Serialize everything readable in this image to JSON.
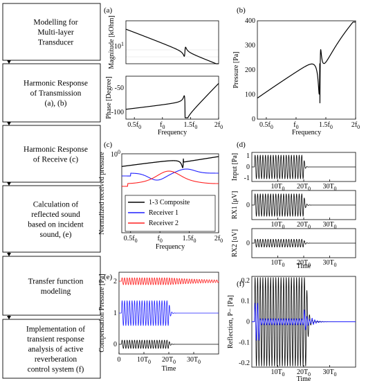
{
  "flowchart": {
    "steps": [
      {
        "lines": [
          "Modelling for",
          "Multi-layer",
          "Transducer"
        ]
      },
      {
        "lines": [
          "Harmonic Response",
          "of Transmission",
          "(a), (b)"
        ]
      },
      {
        "lines": [
          "Harmonic Response",
          "of Receive (c)"
        ]
      },
      {
        "lines": [
          "Calculation of",
          "reflected sound",
          "based on incident",
          "sound, (e)"
        ]
      },
      {
        "lines": [
          "Transfer function",
          "modeling"
        ]
      },
      {
        "lines": [
          "Implementation of",
          "transient response",
          "analysis of active",
          "reverberation",
          "control system (f)"
        ]
      }
    ]
  },
  "panels": {
    "a": {
      "letter": "(a)",
      "mag_ylabel": "Magnitude [kOhm]",
      "mag_tick": "10",
      "mag_tick_sup": "1",
      "phase_ylabel": "Phase [Degree]",
      "phase_ticks": [
        "-50",
        "-100"
      ],
      "xticks": [
        "0.5f0",
        "f0",
        "1.5f0",
        "2f0"
      ],
      "xlabel": "Frequency"
    },
    "b": {
      "letter": "(b)",
      "ylabel": "Pressure [Pa]",
      "yticks": [
        "400",
        "300",
        "200",
        "100",
        "0"
      ],
      "xticks": [
        "0.5f0",
        "f0",
        "1.5f0",
        "2f0"
      ],
      "xlabel": "Frequency"
    },
    "c": {
      "letter": "(c)",
      "ylabel": "Normalized received pressure",
      "ytick": "10",
      "ytick_sup": "0",
      "xticks": [
        "0.5f0",
        "f0",
        "1.5f0",
        "2f0"
      ],
      "xlabel": "Frequency",
      "legend": [
        "1-3 Composite",
        "Receiver 1",
        "Receiver 2"
      ]
    },
    "d": {
      "letter": "(d)",
      "ylabels": [
        "Input [Pa]",
        "RX1 [μV]",
        "RX2 [uV]"
      ],
      "yticks": [
        "1",
        "0",
        "-1"
      ],
      "xticks": [
        "10T0",
        "20T0",
        "30T0"
      ],
      "xlabel": "Time"
    },
    "e": {
      "letter": "(e)",
      "ylabel": "Compensation Pressure [Pa]",
      "yticks": [
        "2",
        "1",
        "0"
      ],
      "xticks": [
        "0",
        "10T0",
        "20T0",
        "30T0"
      ],
      "xlabel": "Time"
    },
    "f": {
      "letter": "(f)",
      "ylabel": "Reflection, P− [Pa]",
      "yticks": [
        "0.2",
        "0.1",
        "0",
        "-0.1",
        "-0.2"
      ],
      "xticks": [
        "10T0",
        "20T0",
        "30T0"
      ],
      "xlabel": "Time"
    }
  },
  "colors": {
    "black": "#000000",
    "blue": "#1f1fff",
    "red": "#ff1f1f",
    "grid": "#d9d9d9"
  }
}
